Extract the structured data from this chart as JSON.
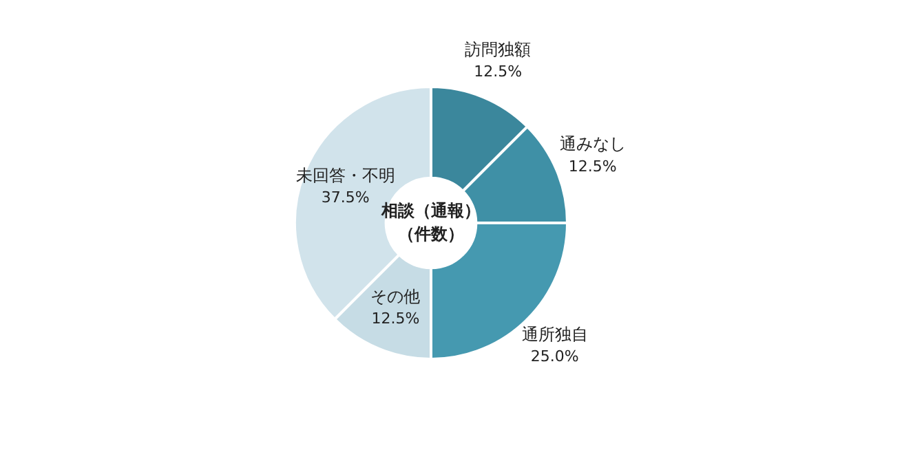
{
  "chart_data": {
    "type": "donut",
    "title": "相談（通報）（件数）",
    "categories": [
      "訪問独額",
      "通みなし",
      "通所独自",
      "その他",
      "未回答・不明"
    ],
    "values": [
      12.5,
      12.5,
      25.0,
      12.5,
      37.5
    ],
    "value_labels": [
      "12.5%",
      "12.5%",
      "25.0%",
      "12.5%",
      "37.5%"
    ],
    "colors": [
      "#3b879c",
      "#3f90a6",
      "#4599b0",
      "#c6dce5",
      "#d1e3eb"
    ],
    "legend": false
  }
}
